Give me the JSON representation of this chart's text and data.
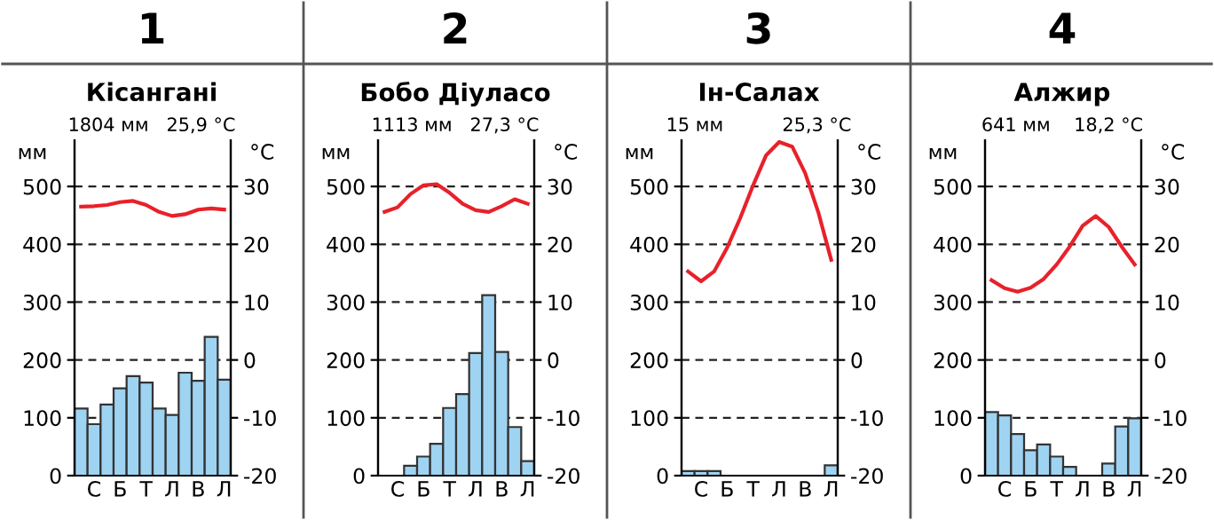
{
  "chart_data": [
    {
      "type": "bar",
      "title": "1",
      "subtitle": "Кісангані",
      "annotations": [
        "1804 мм   25,9 °C"
      ],
      "ylabel": "мм",
      "y2label": "°C",
      "categories": [
        null,
        "С",
        null,
        "Б",
        null,
        "Т",
        null,
        "Л",
        null,
        "В",
        null,
        "Л"
      ],
      "series": [
        {
          "color": "#9fd3f2",
          "values": [
            116,
            89,
            123,
            151,
            172,
            161,
            116,
            105,
            178,
            164,
            240,
            166
          ]
        },
        {
          "type": "line",
          "axis": "y2",
          "color": "#e8212a",
          "values": [
            26.5,
            26.6,
            26.8,
            27.3,
            27.5,
            26.8,
            25.6,
            24.9,
            25.2,
            26.0,
            26.2,
            26.0
          ]
        }
      ],
      "ylim": [
        0,
        580
      ],
      "yticks": [
        0,
        100,
        200,
        300,
        400,
        500
      ],
      "y2lim": [
        -20,
        38
      ],
      "y2ticks": [
        -20,
        -10,
        0,
        10,
        20,
        30
      ],
      "grid": "y",
      "line_style": "solid"
    },
    {
      "type": "bar",
      "title": "2",
      "subtitle": "Бобо Діуласо",
      "annotations": [
        "1113 мм   27,3 °C"
      ],
      "ylabel": "мм",
      "y2label": "°C",
      "categories": [
        null,
        "С",
        null,
        "Б",
        null,
        "Т",
        null,
        "Л",
        null,
        "В",
        null,
        "Л"
      ],
      "series": [
        {
          "color": "#9fd3f2",
          "values": [
            0,
            0,
            17,
            33,
            55,
            117,
            141,
            212,
            312,
            214,
            84,
            25
          ]
        },
        {
          "type": "line",
          "axis": "y2",
          "color": "#e8212a",
          "values": [
            25.6,
            26.4,
            28.7,
            30.2,
            30.4,
            28.9,
            27.0,
            25.9,
            25.6,
            26.6,
            27.8,
            27.0
          ]
        }
      ],
      "ylim": [
        0,
        580
      ],
      "yticks": [
        0,
        100,
        200,
        300,
        400,
        500
      ],
      "y2lim": [
        -20,
        38
      ],
      "y2ticks": [
        -20,
        -10,
        0,
        10,
        20,
        30
      ],
      "grid": "y",
      "line_style": "solid"
    },
    {
      "type": "bar",
      "title": "3",
      "subtitle": "Ін-Салах",
      "annotations": [
        "15 мм          25,3 °C"
      ],
      "ylabel": "мм",
      "y2label": "°C",
      "categories": [
        null,
        "С",
        null,
        "Б",
        null,
        "Т",
        null,
        "Л",
        null,
        "В",
        null,
        "Л"
      ],
      "series": [
        {
          "color": "#9fd3f2",
          "values": [
            8,
            8,
            8,
            0,
            0,
            0,
            0,
            0,
            0,
            0,
            0,
            18
          ]
        },
        {
          "type": "line",
          "axis": "y2",
          "color": "#e8212a",
          "values": [
            15.3,
            13.6,
            15.3,
            19.4,
            24.5,
            30.2,
            35.4,
            37.7,
            36.9,
            32.3,
            25.6,
            17.3
          ]
        }
      ],
      "ylim": [
        0,
        580
      ],
      "yticks": [
        0,
        100,
        200,
        300,
        400,
        500
      ],
      "y2lim": [
        -20,
        38
      ],
      "y2ticks": [
        -20,
        -10,
        0,
        10,
        20,
        30
      ],
      "grid": "y",
      "line_style": "solid"
    },
    {
      "type": "bar",
      "title": "4",
      "subtitle": "Алжир",
      "annotations": [
        "641 мм    18,2 °C"
      ],
      "ylabel": "мм",
      "y2label": "°C",
      "categories": [
        null,
        "С",
        null,
        "Б",
        null,
        "Т",
        null,
        "Л",
        null,
        "В",
        null,
        "Л"
      ],
      "series": [
        {
          "color": "#9fd3f2",
          "values": [
            110,
            104,
            72,
            44,
            54,
            33,
            15,
            0,
            0,
            21,
            85,
            99
          ]
        },
        {
          "type": "line",
          "axis": "y2",
          "color": "#e8212a",
          "values": [
            13.8,
            12.4,
            11.8,
            12.5,
            14.0,
            16.5,
            19.6,
            23.2,
            24.9,
            23.0,
            19.6,
            16.5
          ]
        }
      ],
      "ylim": [
        0,
        580
      ],
      "yticks": [
        0,
        100,
        200,
        300,
        400,
        500
      ],
      "y2lim": [
        -20,
        38
      ],
      "y2ticks": [
        -20,
        -10,
        0,
        10,
        20,
        30
      ],
      "grid": "y",
      "line_style": "solid"
    }
  ]
}
